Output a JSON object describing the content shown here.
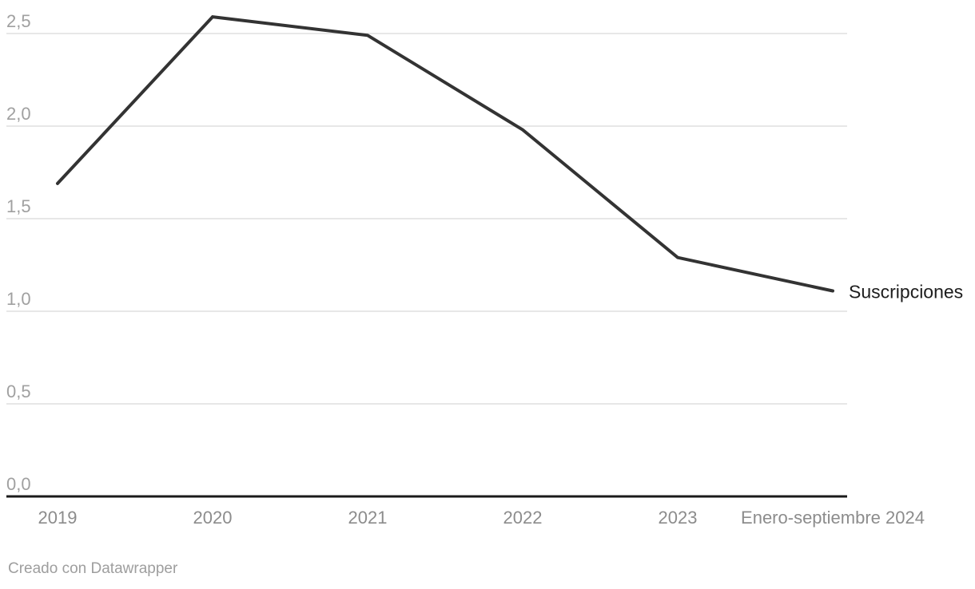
{
  "chart_data": {
    "type": "line",
    "categories": [
      "2019",
      "2020",
      "2021",
      "2022",
      "2023",
      "Enero-septiembre 2024"
    ],
    "series": [
      {
        "name": "Suscripciones",
        "values": [
          1.69,
          2.59,
          2.49,
          1.98,
          1.29,
          1.11
        ]
      }
    ],
    "title": "",
    "xlabel": "",
    "ylabel": "",
    "ylim": [
      0,
      2.65
    ],
    "yticks": [
      {
        "value": 0,
        "label": "0,0"
      },
      {
        "value": 0.5,
        "label": "0,5"
      },
      {
        "value": 1,
        "label": "1,0"
      },
      {
        "value": 1.5,
        "label": "1,5"
      },
      {
        "value": 2,
        "label": "2,0"
      },
      {
        "value": 2.5,
        "label": "2,5"
      }
    ],
    "grid": true,
    "legend_position": "end-of-line",
    "colors": {
      "line": "#333333",
      "series_label": "#1d1d1d",
      "y_tick_text": "#a0a0a0",
      "x_tick_text": "#8c8c8c",
      "gridline": "#e7e7e7",
      "axis_line": "#1a1a1a"
    }
  },
  "footer": {
    "credit": "Creado con Datawrapper"
  }
}
